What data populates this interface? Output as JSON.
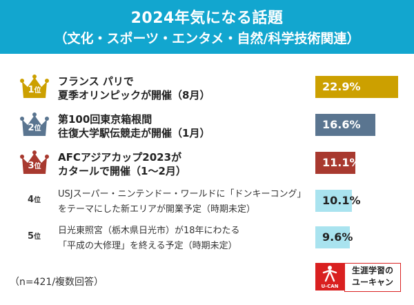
{
  "header": {
    "title": "2024年気になる話題",
    "subtitle": "（文化・スポーツ・エンタメ・自然/科学技術関連）"
  },
  "colors": {
    "header_bg": "#12a6cf",
    "gold": "#cca000",
    "silver": "#5a7590",
    "bronze": "#a8392f",
    "plain": "#a9e3ef",
    "logo_red": "#d92020"
  },
  "chart_data": {
    "type": "bar",
    "orientation": "horizontal",
    "unit": "%",
    "xlim": [
      0,
      23.5
    ],
    "items": [
      {
        "rank": "1",
        "rank_suffix": "位",
        "lines": [
          "フランス パリで",
          "夏季オリンピックが開催（8月）"
        ],
        "value": 22.9,
        "value_label": "22.9%",
        "style": "gold"
      },
      {
        "rank": "2",
        "rank_suffix": "位",
        "lines": [
          "第100回東京箱根間",
          "往復大学駅伝競走が開催（1月）"
        ],
        "value": 16.6,
        "value_label": "16.6%",
        "style": "silver"
      },
      {
        "rank": "3",
        "rank_suffix": "位",
        "lines": [
          "AFCアジアカップ2023が",
          "カタールで開催（1～2月）"
        ],
        "value": 11.1,
        "value_label": "11.1%",
        "style": "bronze"
      },
      {
        "rank": "4",
        "rank_suffix": "位",
        "lines": [
          "USJスーパー・ニンテンドー・ワールドに「ドンキーコング」",
          "をテーマにした新エリアが開業予定（時期未定）"
        ],
        "value": 10.1,
        "value_label": "10.1%",
        "style": "plain"
      },
      {
        "rank": "5",
        "rank_suffix": "位",
        "lines": [
          "日光東照宮（栃木県日光市）が18年にわたる",
          "「平成の大修理」を終える予定（時期未定）"
        ],
        "value": 9.6,
        "value_label": "9.6%",
        "style": "plain"
      }
    ]
  },
  "footnote": "（n=421/複数回答）",
  "logo": {
    "mark_text": "U-CAN",
    "line1": "生涯学習の",
    "line2": "ユーキャン"
  }
}
